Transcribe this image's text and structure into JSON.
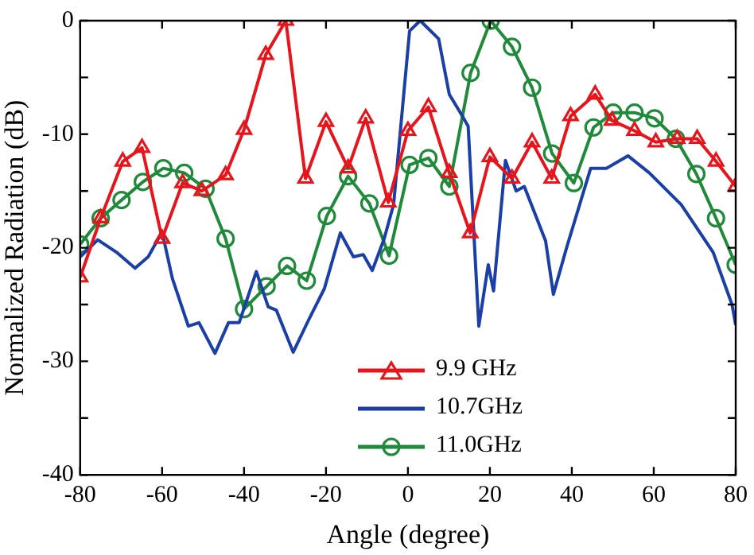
{
  "chart_data": {
    "type": "line",
    "xlabel": "Angle (degree)",
    "ylabel": "Normalized Radiation (dB)",
    "xlim": [
      -80,
      80
    ],
    "xticks": [
      -80,
      -60,
      -40,
      -20,
      0,
      20,
      40,
      60,
      80
    ],
    "ylim": [
      -40,
      0
    ],
    "yticks": [
      -40,
      {
        "value": -35,
        "label": null
      },
      -30,
      {
        "value": -25,
        "label": null
      },
      -20,
      {
        "value": -15,
        "label": null
      },
      -10,
      {
        "value": -5,
        "label": null
      },
      0
    ],
    "grid": false,
    "legend": "bottom",
    "series": [
      {
        "name": "9.9 GHz",
        "color": "#e8141c",
        "marker": "triangle",
        "x": [
          -80,
          -75,
          -69.6,
          -64.9,
          -60,
          -55,
          -50.3,
          -44.5,
          -40,
          -34.7,
          -29.8,
          -25,
          -20,
          -14.6,
          -10.3,
          -4.8,
          0,
          5,
          10.1,
          15.2,
          20,
          25.4,
          30.3,
          35.1,
          39.7,
          45.7,
          49.8,
          55.3,
          60.5,
          65.7,
          70.6,
          75.2,
          80
        ],
        "values": [
          -22.6,
          -17.4,
          -12.4,
          -11.2,
          -19.2,
          -14.3,
          -15,
          -13.6,
          -9.6,
          -3,
          0,
          -13.9,
          -8.9,
          -13,
          -8.6,
          -16,
          -9.7,
          -7.6,
          -13.4,
          -18.7,
          -12,
          -13.9,
          -10.7,
          -13.9,
          -8.4,
          -6.5,
          -8.8,
          -9.7,
          -10.7,
          -10.4,
          -10.4,
          -12.4,
          -14.6
        ]
      },
      {
        "name": "10.7GHz",
        "color": "#1a3fa8",
        "marker": "none",
        "x": [
          -80,
          -75.7,
          -71.1,
          -66.6,
          -63.4,
          -60,
          -57.5,
          -53.6,
          -51,
          -47.1,
          -43.8,
          -41.2,
          -37,
          -34.1,
          -32.1,
          -28,
          -24.3,
          -20.4,
          -16.5,
          -13.3,
          -10.9,
          -8.7,
          -5.8,
          -3.5,
          0.4,
          3,
          7.5,
          10.1,
          12.8,
          14.7,
          17.3,
          19.6,
          20.9,
          23.8,
          26.4,
          28.4,
          33.6,
          35.5,
          38.8,
          44.6,
          48.5,
          53.7,
          58.9,
          66.7,
          74.5,
          79.1,
          80
        ],
        "values": [
          -20.8,
          -19.3,
          -20.4,
          -21.8,
          -20.8,
          -18.6,
          -22.7,
          -26.9,
          -26.6,
          -29.3,
          -26.6,
          -26.6,
          -22.1,
          -25.2,
          -25.5,
          -29.2,
          -26.4,
          -23.6,
          -18.7,
          -20.8,
          -20.6,
          -22,
          -19.2,
          -16.2,
          -0.9,
          0,
          -1.6,
          -6.5,
          -8.1,
          -9.3,
          -26.9,
          -21.5,
          -23.8,
          -12.3,
          -15,
          -14.6,
          -19.4,
          -24.1,
          -19.9,
          -13,
          -13,
          -11.9,
          -13.4,
          -16.2,
          -20.4,
          -25,
          -26.8
        ]
      },
      {
        "name": "11.0GHz",
        "color": "#1e8a3a",
        "marker": "circle",
        "x": [
          -80,
          -75,
          -69.9,
          -64.7,
          -59.7,
          -54.6,
          -49.4,
          -44.5,
          -40,
          -34.5,
          -29.5,
          -24.7,
          -19.8,
          -14.6,
          -9.4,
          -4.6,
          0.4,
          5,
          10.1,
          15.3,
          20.2,
          25.4,
          30.3,
          35.2,
          40.5,
          45.3,
          50.1,
          55.3,
          60.2,
          65.4,
          70.4,
          75.2,
          80
        ],
        "values": [
          -19.7,
          -17.4,
          -15.8,
          -14.2,
          -13,
          -13.4,
          -14.8,
          -19.2,
          -25.4,
          -23.4,
          -21.6,
          -22.9,
          -17.2,
          -13.7,
          -16.1,
          -20.7,
          -12.7,
          -12.1,
          -14.6,
          -4.6,
          0,
          -2.3,
          -5.9,
          -11.7,
          -14.3,
          -9.4,
          -8.1,
          -8.1,
          -8.6,
          -10.4,
          -13.5,
          -17.4,
          -21.5
        ]
      }
    ]
  }
}
